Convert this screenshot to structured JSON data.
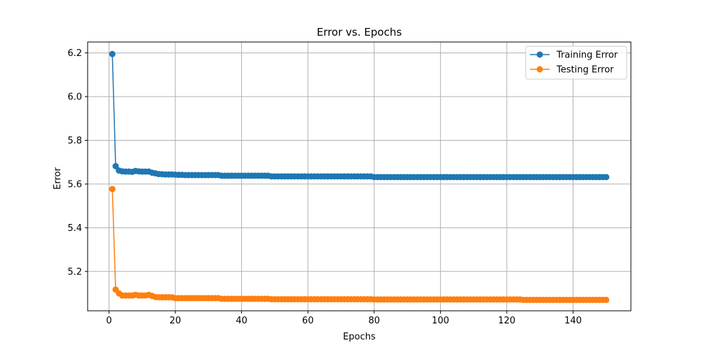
{
  "chart_data": {
    "type": "line",
    "title": "Error vs. Epochs",
    "xlabel": "Epochs",
    "ylabel": "Error",
    "xlim": [
      -6.45,
      157.45
    ],
    "ylim": [
      5.02,
      6.25
    ],
    "xticks": [
      0,
      20,
      40,
      60,
      80,
      100,
      120,
      140
    ],
    "yticks": [
      5.2,
      5.4,
      5.6,
      5.8,
      6.0,
      6.2
    ],
    "xtick_labels": [
      "0",
      "20",
      "40",
      "60",
      "80",
      "100",
      "120",
      "140"
    ],
    "ytick_labels": [
      "5.2",
      "5.4",
      "5.6",
      "5.8",
      "6.0",
      "6.2"
    ],
    "grid": true,
    "legend_position": "top-right",
    "x_range": [
      1,
      150
    ],
    "series": [
      {
        "name": "Training Error",
        "color": "#1f77b4",
        "values": [
          6.195,
          5.682,
          5.662,
          5.658,
          5.657,
          5.657,
          5.656,
          5.66,
          5.658,
          5.657,
          5.657,
          5.657,
          5.652,
          5.649,
          5.646,
          5.645,
          5.644,
          5.644,
          5.644,
          5.643,
          5.642,
          5.642,
          5.641,
          5.641,
          5.641,
          5.641,
          5.641,
          5.641,
          5.641,
          5.641,
          5.641,
          5.641,
          5.641,
          5.638,
          5.638,
          5.638,
          5.638,
          5.638,
          5.638,
          5.638,
          5.638,
          5.638,
          5.638,
          5.638,
          5.638,
          5.638,
          5.638,
          5.638,
          5.635,
          5.635,
          5.635,
          5.635,
          5.635,
          5.635,
          5.635,
          5.635,
          5.635,
          5.635,
          5.635,
          5.635,
          5.635,
          5.635,
          5.635,
          5.635,
          5.635,
          5.635,
          5.635,
          5.635,
          5.635,
          5.635,
          5.635,
          5.635,
          5.635,
          5.635,
          5.635,
          5.635,
          5.635,
          5.635,
          5.635,
          5.632,
          5.632,
          5.632,
          5.632,
          5.632,
          5.632,
          5.632,
          5.632,
          5.632,
          5.632,
          5.632,
          5.632,
          5.632,
          5.632,
          5.632,
          5.632,
          5.632,
          5.632,
          5.632,
          5.632,
          5.632,
          5.632,
          5.632,
          5.632,
          5.632,
          5.632,
          5.632,
          5.632,
          5.632,
          5.632,
          5.632,
          5.632,
          5.632,
          5.632,
          5.632,
          5.632,
          5.632,
          5.632,
          5.632,
          5.632,
          5.632,
          5.632,
          5.632,
          5.632,
          5.632,
          5.632,
          5.632,
          5.632,
          5.632,
          5.632,
          5.632,
          5.632,
          5.632,
          5.632,
          5.632,
          5.632,
          5.632,
          5.632,
          5.632,
          5.632,
          5.632,
          5.632,
          5.632,
          5.632,
          5.632,
          5.632,
          5.632,
          5.632,
          5.632,
          5.632,
          5.632
        ]
      },
      {
        "name": "Testing Error",
        "color": "#ff7f0e",
        "values": [
          5.577,
          5.117,
          5.1,
          5.09,
          5.09,
          5.09,
          5.09,
          5.093,
          5.09,
          5.09,
          5.09,
          5.093,
          5.088,
          5.083,
          5.082,
          5.082,
          5.082,
          5.082,
          5.082,
          5.078,
          5.078,
          5.078,
          5.078,
          5.078,
          5.078,
          5.078,
          5.078,
          5.078,
          5.078,
          5.078,
          5.078,
          5.078,
          5.078,
          5.075,
          5.075,
          5.075,
          5.075,
          5.075,
          5.075,
          5.075,
          5.075,
          5.075,
          5.075,
          5.075,
          5.075,
          5.075,
          5.075,
          5.075,
          5.073,
          5.073,
          5.073,
          5.073,
          5.073,
          5.073,
          5.073,
          5.073,
          5.073,
          5.073,
          5.073,
          5.073,
          5.073,
          5.073,
          5.073,
          5.073,
          5.073,
          5.073,
          5.073,
          5.073,
          5.073,
          5.073,
          5.073,
          5.073,
          5.073,
          5.073,
          5.073,
          5.073,
          5.073,
          5.073,
          5.073,
          5.072,
          5.072,
          5.072,
          5.072,
          5.072,
          5.072,
          5.072,
          5.072,
          5.072,
          5.072,
          5.072,
          5.072,
          5.072,
          5.072,
          5.072,
          5.072,
          5.072,
          5.072,
          5.072,
          5.072,
          5.072,
          5.072,
          5.072,
          5.072,
          5.072,
          5.072,
          5.072,
          5.072,
          5.072,
          5.072,
          5.072,
          5.072,
          5.072,
          5.072,
          5.072,
          5.072,
          5.072,
          5.072,
          5.072,
          5.072,
          5.072,
          5.072,
          5.072,
          5.072,
          5.072,
          5.07,
          5.07,
          5.07,
          5.07,
          5.07,
          5.07,
          5.07,
          5.07,
          5.07,
          5.07,
          5.07,
          5.07,
          5.07,
          5.07,
          5.07,
          5.07,
          5.07,
          5.07,
          5.07,
          5.07,
          5.07,
          5.07,
          5.07,
          5.07,
          5.07,
          5.07
        ]
      }
    ]
  }
}
